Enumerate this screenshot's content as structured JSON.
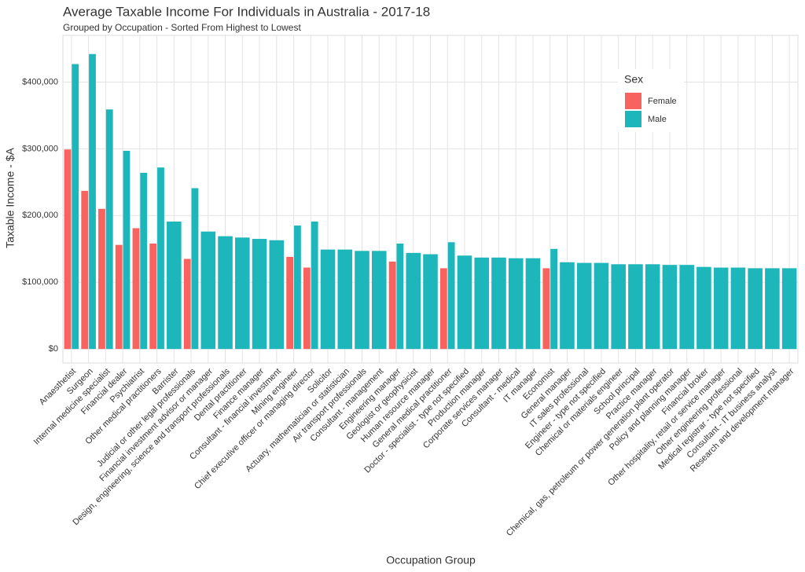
{
  "chart_data": {
    "type": "bar",
    "title": "Average Taxable Income For Individuals in Australia - 2017-18",
    "subtitle": "Grouped by Occupation - Sorted From Highest to Lowest",
    "x_label": "Occupation Group",
    "y_label": "Taxable Income - $A",
    "legend_title": "Sex",
    "legend_position": "top-right",
    "grid": true,
    "categories": [
      "Anaesthetist",
      "Surgeon",
      "Internal medicine specialist",
      "Financial dealer",
      "Psychiatrist",
      "Other medical practitioners",
      "Barrister",
      "Judicial or other legal professionals",
      "Financial investment advisor or manager",
      "Design, engineering, science and transport professionals",
      "Dental practitioner",
      "Finance manager",
      "Consultant - financial investment",
      "Mining engineer",
      "Chief executive officer or managing director",
      "Solicitor",
      "Actuary, mathematician or statistician",
      "Air transport professionals",
      "Consultant - management",
      "Engineering manager",
      "Geologist or geophysicist",
      "Human resource manager",
      "General medical practitioner",
      "Doctor - specialist - type not specified",
      "Production manager",
      "Corporate services manager",
      "Consultant - medical",
      "IT manager",
      "Economist",
      "General manager",
      "IT sales professional",
      "Engineer - type not specified",
      "Chemical or materials engineer",
      "School principal",
      "Practice manager",
      "Chemical, gas, petroleum or power generation plant operator",
      "Policy and planning manager",
      "Financial broker",
      "Other hospitality, retail or service manager",
      "Other engineering professional",
      "Medical registrar - type not specified",
      "Consultant - IT business analyst",
      "Research and development manager"
    ],
    "series": [
      {
        "name": "Female",
        "color": "#f8635f",
        "values": [
          299000,
          237000,
          210000,
          156000,
          181000,
          158000,
          null,
          135000,
          null,
          null,
          null,
          null,
          null,
          138000,
          122000,
          null,
          null,
          null,
          null,
          131000,
          null,
          null,
          121000,
          null,
          null,
          null,
          null,
          null,
          121000,
          null,
          null,
          null,
          null,
          null,
          null,
          null,
          null,
          null,
          null,
          null,
          null,
          null,
          null
        ]
      },
      {
        "name": "Male",
        "color": "#1db6bb",
        "values": [
          427000,
          442000,
          359000,
          297000,
          264000,
          272000,
          191000,
          241000,
          176000,
          169000,
          167000,
          165000,
          163000,
          185000,
          191000,
          149000,
          149000,
          147000,
          147000,
          158000,
          144000,
          142000,
          160000,
          140000,
          137000,
          137000,
          136000,
          136000,
          150000,
          130000,
          129000,
          129000,
          127000,
          127000,
          127000,
          126000,
          126000,
          123000,
          122000,
          122000,
          121000,
          121000,
          121000
        ]
      }
    ],
    "ylim": [
      -21000,
      470000
    ],
    "yticks": [
      {
        "value": 0,
        "label": "$0"
      },
      {
        "value": 100000,
        "label": "$100,000"
      },
      {
        "value": 200000,
        "label": "$200,000"
      },
      {
        "value": 300000,
        "label": "$300,000"
      },
      {
        "value": 400000,
        "label": "$400,000"
      }
    ]
  }
}
